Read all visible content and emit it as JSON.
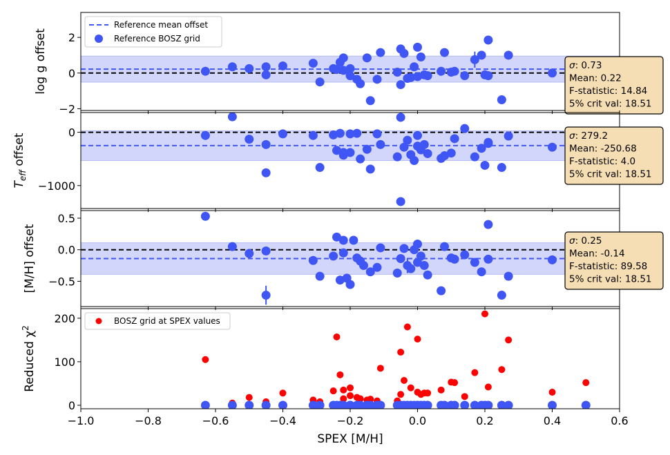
{
  "chart_data": [
    {
      "type": "scatter",
      "panel": "logg",
      "ylabel": "log g offset",
      "ylim": [
        -2.1,
        3.4
      ],
      "yticks": [
        -2,
        0,
        2
      ],
      "ytick_labels": [
        "−2",
        "0",
        "2"
      ],
      "mean": 0.22,
      "sigma": 0.73,
      "legend": {
        "location": "top-left",
        "entries": [
          "Reference mean offset",
          "Reference BOSZ grid"
        ]
      },
      "stats": [
        "σ: 0.73",
        "Mean: 0.22",
        "F-statistic: 14.84",
        "5% crit val: 18.51"
      ],
      "series": [
        {
          "name": "Reference BOSZ grid",
          "x": [
            -0.63,
            -0.55,
            -0.5,
            -0.45,
            -0.45,
            -0.4,
            -0.31,
            -0.29,
            -0.25,
            -0.24,
            -0.23,
            -0.22,
            -0.22,
            -0.2,
            -0.2,
            -0.18,
            -0.17,
            -0.15,
            -0.14,
            -0.12,
            -0.11,
            -0.06,
            -0.05,
            -0.05,
            -0.04,
            -0.03,
            -0.02,
            -0.01,
            0,
            0,
            0.01,
            0.02,
            0.03,
            0.07,
            0.08,
            0.1,
            0.11,
            0.14,
            0.17,
            0.19,
            0.2,
            0.21,
            0.21,
            0.25,
            0.27,
            0.4
          ],
          "y": [
            0.1,
            0.35,
            0.25,
            0.35,
            -0.1,
            0.4,
            0.55,
            -0.5,
            0.25,
            0.2,
            0.6,
            0.85,
            0.15,
            0.25,
            -0.15,
            -0.35,
            -0.6,
            0.85,
            -1.55,
            -0.35,
            1.15,
            0.05,
            -0.65,
            1.35,
            1.1,
            -0.3,
            -0.25,
            0.35,
            1.45,
            -0.2,
            0.9,
            -0.1,
            -0.15,
            0.1,
            1.15,
            0.05,
            0.1,
            -0.15,
            0.75,
            1.0,
            -0.1,
            -0.15,
            1.85,
            -1.5,
            1.0,
            0.0
          ],
          "yerr": [
            0,
            0,
            0,
            0,
            0,
            0,
            0,
            0,
            0,
            0,
            0,
            0,
            0,
            0,
            0,
            0,
            0,
            0,
            0,
            0,
            0,
            0,
            0,
            0,
            0,
            0,
            0,
            0,
            0,
            0,
            0,
            0,
            0,
            0,
            0,
            0,
            0,
            0,
            0.45,
            0,
            0,
            0,
            0,
            0,
            0,
            0
          ]
        }
      ]
    },
    {
      "type": "scatter",
      "panel": "teff",
      "ylabel_main": "T",
      "ylabel_sub": "eff",
      "ylabel_rest": " offset",
      "ylim": [
        -1430,
        370
      ],
      "yticks": [
        0,
        -1000
      ],
      "ytick_labels": [
        "0",
        "−1000"
      ],
      "mean": -250.68,
      "sigma": 279.2,
      "stats": [
        "σ: 279.2",
        "Mean: -250.68",
        "F-statistic: 4.0",
        "5% crit val: 18.51"
      ],
      "series": [
        {
          "name": "Reference BOSZ grid",
          "x": [
            -0.63,
            -0.55,
            -0.5,
            -0.45,
            -0.45,
            -0.4,
            -0.31,
            -0.29,
            -0.25,
            -0.24,
            -0.23,
            -0.22,
            -0.22,
            -0.2,
            -0.2,
            -0.18,
            -0.17,
            -0.15,
            -0.14,
            -0.12,
            -0.11,
            -0.06,
            -0.05,
            -0.05,
            -0.04,
            -0.03,
            -0.02,
            -0.01,
            0,
            0,
            0.01,
            0.02,
            0.03,
            0.07,
            0.08,
            0.1,
            0.11,
            0.14,
            0.17,
            0.19,
            0.2,
            0.21,
            0.21,
            0.25,
            0.27,
            0.4
          ],
          "y": [
            -60,
            290,
            -130,
            -230,
            -760,
            -30,
            -60,
            -660,
            -50,
            -340,
            -20,
            -380,
            -430,
            -380,
            -30,
            -20,
            -500,
            -320,
            -690,
            -30,
            -230,
            -460,
            -1300,
            280,
            -280,
            -150,
            -420,
            -530,
            -260,
            -60,
            -330,
            -230,
            -400,
            -490,
            -440,
            -390,
            -120,
            70,
            -460,
            -300,
            -620,
            -210,
            -190,
            -660,
            -70,
            -280
          ],
          "yerr": [
            0,
            0,
            0,
            0,
            0,
            0,
            0,
            0,
            0,
            0,
            0,
            0,
            0,
            0,
            0,
            0,
            0,
            0,
            0,
            0,
            0,
            0,
            0,
            0,
            0,
            0,
            0,
            0,
            0,
            0,
            0,
            0,
            0,
            0,
            0,
            0,
            0,
            0,
            0,
            0,
            0,
            0,
            0,
            0,
            0,
            0
          ]
        }
      ]
    },
    {
      "type": "scatter",
      "panel": "mh",
      "ylabel": "[M/H] offset",
      "ylim": [
        -0.9,
        0.62
      ],
      "yticks": [
        0.5,
        0.0,
        -0.5
      ],
      "ytick_labels": [
        "0.5",
        "0.0",
        "−0.5"
      ],
      "mean": -0.14,
      "sigma": 0.25,
      "stats": [
        "σ: 0.25",
        "Mean: -0.14",
        "F-statistic: 89.58",
        "5% crit val: 18.51"
      ],
      "series": [
        {
          "name": "Reference BOSZ grid",
          "x": [
            -0.63,
            -0.55,
            -0.5,
            -0.45,
            -0.45,
            -0.31,
            -0.29,
            -0.25,
            -0.24,
            -0.23,
            -0.22,
            -0.22,
            -0.21,
            -0.2,
            -0.19,
            -0.18,
            -0.17,
            -0.16,
            -0.14,
            -0.12,
            -0.11,
            -0.06,
            -0.05,
            -0.04,
            -0.03,
            -0.02,
            -0.01,
            0,
            0,
            0.01,
            0.02,
            0.03,
            0.07,
            0.08,
            0.1,
            0.11,
            0.14,
            0.17,
            0.19,
            0.21,
            0.21,
            0.25,
            0.27,
            0.4
          ],
          "y": [
            0.53,
            0.05,
            -0.06,
            -0.02,
            -0.72,
            -0.17,
            -0.42,
            -0.1,
            0.2,
            -0.48,
            0.15,
            -0.05,
            -0.45,
            -0.55,
            0.15,
            -0.13,
            -0.18,
            -0.25,
            -0.35,
            -0.28,
            0.03,
            -0.37,
            -0.14,
            0.02,
            -0.25,
            -0.3,
            0.0,
            0.09,
            -0.2,
            -0.1,
            -0.25,
            -0.4,
            -0.65,
            0.05,
            -0.13,
            -0.15,
            -0.08,
            -0.2,
            -0.35,
            0.4,
            -0.15,
            -0.72,
            -0.42,
            -0.16
          ],
          "yerr": [
            0,
            0,
            0,
            0,
            0.15,
            0,
            0,
            0,
            0,
            0,
            0,
            0,
            0,
            0,
            0,
            0,
            0,
            0,
            0,
            0,
            0,
            0,
            0,
            0,
            0.12,
            0,
            0,
            0,
            0,
            0,
            0,
            0,
            0,
            0,
            0,
            0,
            0,
            0,
            0,
            0,
            0,
            0,
            0,
            0
          ]
        }
      ]
    },
    {
      "type": "scatter",
      "panel": "chi2",
      "ylabel_main": "Reduced χ",
      "ylabel_sup": "2",
      "ylim": [
        -8,
        222
      ],
      "yticks": [
        0,
        100,
        200
      ],
      "ytick_labels": [
        "0",
        "100",
        "200"
      ],
      "xlabel": "SPEX [M/H]",
      "xlim": [
        -1.0,
        0.6
      ],
      "xticks": [
        -1.0,
        -0.8,
        -0.6,
        -0.4,
        -0.2,
        0.0,
        0.2,
        0.4,
        0.6
      ],
      "xtick_labels": [
        "−1.0",
        "−0.8",
        "−0.6",
        "−0.4",
        "−0.2",
        "0.0",
        "0.2",
        "0.4",
        "0.6"
      ],
      "legend": {
        "location": "top-left",
        "entries": [
          "BOSZ grid at SPEX values"
        ]
      },
      "series": [
        {
          "name": "BOSZ grid at SPEX values",
          "color": "red",
          "x": [
            -0.63,
            -0.55,
            -0.5,
            -0.45,
            -0.4,
            -0.31,
            -0.29,
            -0.25,
            -0.24,
            -0.23,
            -0.22,
            -0.22,
            -0.2,
            -0.2,
            -0.18,
            -0.17,
            -0.15,
            -0.14,
            -0.12,
            -0.11,
            -0.06,
            -0.05,
            -0.05,
            -0.04,
            -0.03,
            -0.02,
            -0.01,
            0,
            0,
            0.01,
            0.02,
            0.03,
            0.07,
            0.1,
            0.11,
            0.14,
            0.17,
            0.2,
            0.21,
            0.25,
            0.27,
            0.4,
            0.5
          ],
          "y": [
            105,
            5,
            18,
            8,
            28,
            12,
            8,
            33,
            157,
            70,
            35,
            15,
            40,
            22,
            18,
            15,
            12,
            14,
            10,
            85,
            10,
            122,
            25,
            57,
            180,
            40,
            0,
            30,
            152,
            25,
            28,
            28,
            35,
            53,
            52,
            20,
            75,
            210,
            42,
            82,
            150,
            30,
            52
          ]
        },
        {
          "name": "Reference BOSZ grid",
          "color": "blue",
          "x": [
            -0.63,
            -0.55,
            -0.5,
            -0.45,
            -0.4,
            -0.31,
            -0.29,
            -0.25,
            -0.24,
            -0.23,
            -0.22,
            -0.2,
            -0.2,
            -0.18,
            -0.17,
            -0.15,
            -0.14,
            -0.12,
            -0.11,
            -0.06,
            -0.05,
            -0.04,
            -0.03,
            -0.02,
            -0.01,
            0,
            0,
            0.01,
            0.02,
            0.03,
            0.07,
            0.08,
            0.1,
            0.11,
            0.14,
            0.17,
            0.19,
            0.2,
            0.21,
            0.25,
            0.27,
            0.4,
            0.5
          ],
          "y": [
            0,
            0,
            0,
            0,
            0,
            0,
            0,
            0,
            0,
            0,
            0,
            0,
            0,
            0,
            0,
            0,
            0,
            0,
            0,
            0,
            0,
            0,
            0,
            0,
            0,
            0,
            0,
            0,
            0,
            0,
            0,
            0,
            0,
            0,
            0,
            0,
            0,
            0,
            0,
            0,
            0,
            0,
            0
          ]
        }
      ]
    }
  ],
  "colors": {
    "blue": "#4056f4",
    "red": "#ff0000",
    "band": "#d2d6fa",
    "statbox": "#f5deb3"
  }
}
